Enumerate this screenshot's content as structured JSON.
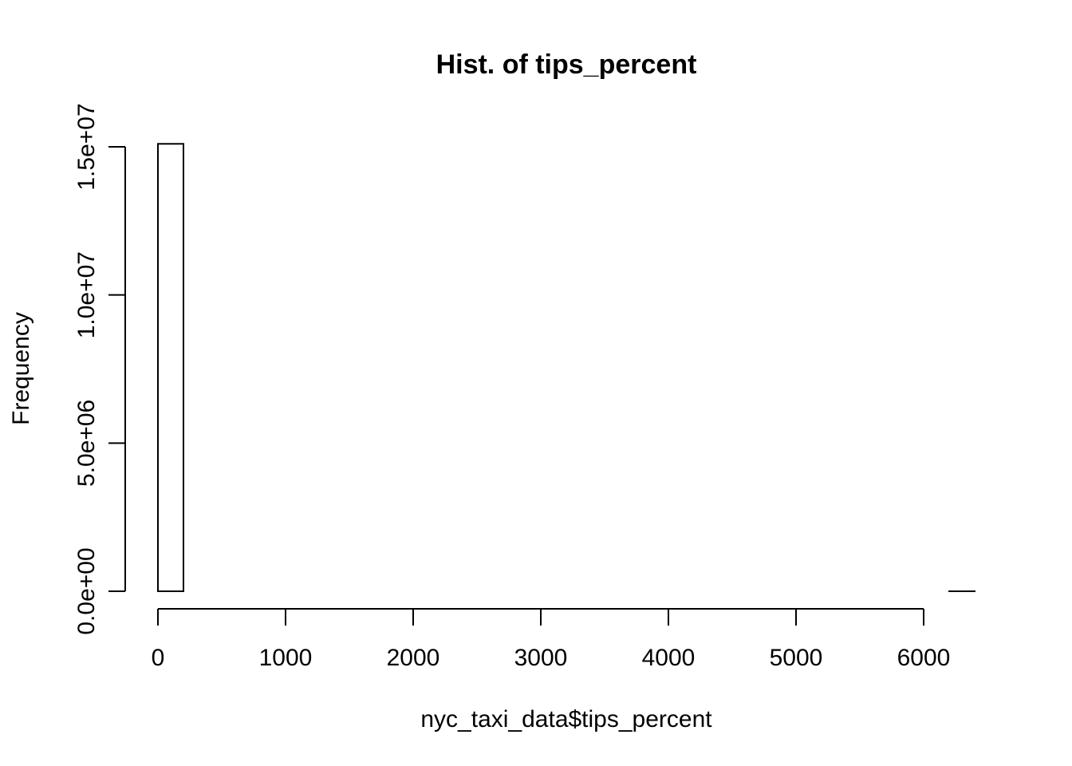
{
  "chart_data": {
    "type": "bar",
    "title": "Hist. of tips_percent",
    "xlabel": "nyc_taxi_data$tips_percent",
    "ylabel": "Frequency",
    "xlim": [
      0,
      6400
    ],
    "ylim": [
      0,
      15000000
    ],
    "bin_width": 200,
    "bins": [
      {
        "x0": 0,
        "x1": 200,
        "count": 15100000
      },
      {
        "x0": 200,
        "x1": 400,
        "count": 0
      },
      {
        "x0": 400,
        "x1": 600,
        "count": 0
      },
      {
        "x0": 600,
        "x1": 800,
        "count": 0
      },
      {
        "x0": 800,
        "x1": 1000,
        "count": 0
      },
      {
        "x0": 1000,
        "x1": 1200,
        "count": 0
      },
      {
        "x0": 1200,
        "x1": 1400,
        "count": 0
      },
      {
        "x0": 1400,
        "x1": 1600,
        "count": 0
      },
      {
        "x0": 1600,
        "x1": 1800,
        "count": 0
      },
      {
        "x0": 1800,
        "x1": 2000,
        "count": 0
      },
      {
        "x0": 2000,
        "x1": 2200,
        "count": 0
      },
      {
        "x0": 2200,
        "x1": 2400,
        "count": 0
      },
      {
        "x0": 2400,
        "x1": 2600,
        "count": 0
      },
      {
        "x0": 2600,
        "x1": 2800,
        "count": 0
      },
      {
        "x0": 2800,
        "x1": 3000,
        "count": 0
      },
      {
        "x0": 3000,
        "x1": 3200,
        "count": 0
      },
      {
        "x0": 3200,
        "x1": 3400,
        "count": 0
      },
      {
        "x0": 3400,
        "x1": 3600,
        "count": 0
      },
      {
        "x0": 3600,
        "x1": 3800,
        "count": 0
      },
      {
        "x0": 3800,
        "x1": 4000,
        "count": 0
      },
      {
        "x0": 4000,
        "x1": 4200,
        "count": 0
      },
      {
        "x0": 4200,
        "x1": 4400,
        "count": 0
      },
      {
        "x0": 4400,
        "x1": 4600,
        "count": 0
      },
      {
        "x0": 4600,
        "x1": 4800,
        "count": 0
      },
      {
        "x0": 4800,
        "x1": 5000,
        "count": 0
      },
      {
        "x0": 5000,
        "x1": 5200,
        "count": 0
      },
      {
        "x0": 5200,
        "x1": 5400,
        "count": 0
      },
      {
        "x0": 5400,
        "x1": 5600,
        "count": 0
      },
      {
        "x0": 5600,
        "x1": 5800,
        "count": 0
      },
      {
        "x0": 5800,
        "x1": 6000,
        "count": 0
      },
      {
        "x0": 6000,
        "x1": 6200,
        "count": 0
      },
      {
        "x0": 6200,
        "x1": 6400,
        "count": 1
      }
    ],
    "x_ticks": [
      {
        "value": 0,
        "label": "0"
      },
      {
        "value": 1000,
        "label": "1000"
      },
      {
        "value": 2000,
        "label": "2000"
      },
      {
        "value": 3000,
        "label": "3000"
      },
      {
        "value": 4000,
        "label": "4000"
      },
      {
        "value": 5000,
        "label": "5000"
      },
      {
        "value": 6000,
        "label": "6000"
      }
    ],
    "y_ticks": [
      {
        "value": 0,
        "label": "0.0e+00"
      },
      {
        "value": 5000000,
        "label": "5.0e+06"
      },
      {
        "value": 10000000,
        "label": "1.0e+07"
      },
      {
        "value": 15000000,
        "label": "1.5e+07"
      }
    ],
    "grid": false,
    "legend": "none",
    "colors": {
      "bar_fill": "#ffffff",
      "stroke": "#000000",
      "background": "#ffffff"
    }
  }
}
